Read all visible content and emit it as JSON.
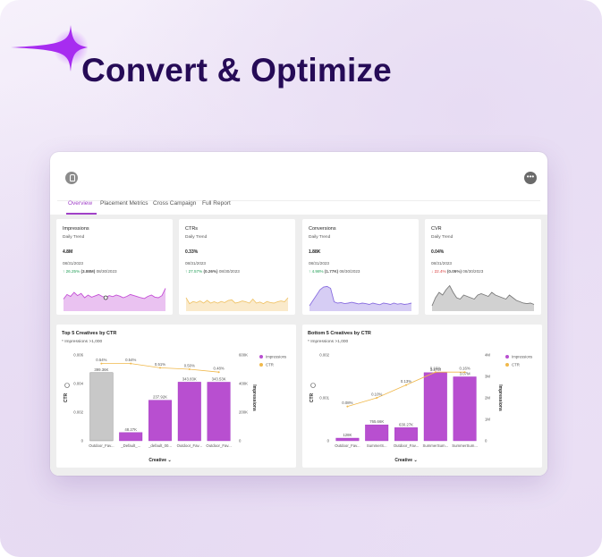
{
  "hero": {
    "title": "Convert & Optimize"
  },
  "tabs": [
    "Overview",
    "Placement Metrics",
    "Cross Campaign",
    "Full Report"
  ],
  "kpis": [
    {
      "title": "Impressions",
      "subtitle": "Daily Trend",
      "value": "4.8M",
      "date": "08/31/2023",
      "change_pct": "26.25%",
      "change_abs": "(3.88M)",
      "compare_date": "08/30/2023",
      "direction": "up",
      "color": "#c44fd6"
    },
    {
      "title": "CTRs",
      "subtitle": "Daily Trend",
      "value": "0.33%",
      "date": "08/31/2023",
      "change_pct": "27.57%",
      "change_abs": "(0.26%)",
      "compare_date": "08/30/2023",
      "direction": "up",
      "color": "#f0c46a"
    },
    {
      "title": "Conversions",
      "subtitle": "Daily Trend",
      "value": "1.88K",
      "date": "08/31/2023",
      "change_pct": "4.98%",
      "change_abs": "(1.77K)",
      "compare_date": "08/30/2023",
      "direction": "up",
      "color": "#8a6fe0"
    },
    {
      "title": "CVR",
      "subtitle": "Daily Trend",
      "value": "0.04%",
      "date": "08/31/2023",
      "change_pct": "22.4%",
      "change_abs": "(0.05%)",
      "compare_date": "08/30/2023",
      "direction": "down",
      "color": "#7a7a7a"
    }
  ],
  "chart_data": [
    {
      "type": "bar",
      "title": "Top 5 Creatives by CTR",
      "subtitle": "* Impressions >1,000",
      "xlabel": "Creative",
      "ylabel": "CTR",
      "y2label": "Impressions",
      "categories": [
        "Outdoor_Fav...",
        "_Default_...",
        "_default_00...",
        "Outdoor_Fav...",
        "Outdoor_Fav..."
      ],
      "series": [
        {
          "name": "Impressions",
          "type": "bar",
          "values": [
            399360,
            48270,
            237920,
            343830,
            343530
          ],
          "labels": [
            "399.36K",
            "48.27K",
            "237.92K",
            "343.83K",
            "343.53K"
          ]
        },
        {
          "name": "CTR",
          "type": "line",
          "values": [
            0.0054,
            0.0054,
            0.0051,
            0.005,
            0.0048
          ],
          "labels": [
            "0.54%",
            "0.54%",
            "0.51%",
            "0.50%",
            "0.48%"
          ]
        }
      ],
      "y_ticks": [
        "0.006",
        "0.004",
        "0.002",
        "0"
      ],
      "y2_ticks": [
        "600K",
        "400K",
        "200K",
        "0"
      ],
      "legend": [
        "Impressions",
        "CTR"
      ]
    },
    {
      "type": "bar",
      "title": "Bottom 5 Creatives by CTR",
      "subtitle": "* Impressions >1,000",
      "xlabel": "Creative",
      "ylabel": "CTR",
      "y2label": "Impressions",
      "categories": [
        "Outdoor_Fav...",
        "SummerS...",
        "Outdoor_Fav...",
        "SummerSum...",
        "SummerSum..."
      ],
      "series": [
        {
          "name": "Impressions",
          "type": "bar",
          "values": [
            128000,
            765660,
            630270,
            3270000,
            3070000
          ],
          "labels": [
            "128K",
            "765.66K",
            "630.27K",
            "3.27M",
            "3.07M"
          ]
        },
        {
          "name": "CTR",
          "type": "line",
          "values": [
            0.0008,
            0.001,
            0.0013,
            0.0016,
            0.0016
          ],
          "labels": [
            "0.08%",
            "0.10%",
            "0.13%",
            "0.16%",
            "0.16%"
          ]
        }
      ],
      "y_ticks": [
        "0.002",
        "0.001",
        "0"
      ],
      "y2_ticks": [
        "4M",
        "3M",
        "2M",
        "1M",
        "0"
      ],
      "legend": [
        "Impressions",
        "CTR"
      ]
    }
  ],
  "sparklines": [
    [
      0.45,
      0.62,
      0.55,
      0.7,
      0.58,
      0.66,
      0.5,
      0.6,
      0.52,
      0.57,
      0.62,
      0.55,
      0.5,
      0.58,
      0.54,
      0.6,
      0.56,
      0.5,
      0.55,
      0.62,
      0.58,
      0.54,
      0.5,
      0.47,
      0.55,
      0.6,
      0.52,
      0.5,
      0.58,
      0.85
    ],
    [
      0.5,
      0.28,
      0.36,
      0.32,
      0.38,
      0.3,
      0.4,
      0.3,
      0.35,
      0.3,
      0.36,
      0.32,
      0.4,
      0.42,
      0.3,
      0.33,
      0.38,
      0.35,
      0.3,
      0.45,
      0.3,
      0.34,
      0.28,
      0.36,
      0.32,
      0.3,
      0.35,
      0.38,
      0.35,
      0.5
    ],
    [
      0.2,
      0.4,
      0.6,
      0.8,
      0.9,
      0.92,
      0.85,
      0.35,
      0.3,
      0.32,
      0.28,
      0.3,
      0.33,
      0.3,
      0.27,
      0.3,
      0.28,
      0.25,
      0.3,
      0.27,
      0.24,
      0.3,
      0.28,
      0.25,
      0.3,
      0.26,
      0.28,
      0.25,
      0.27,
      0.3
    ],
    [
      0.2,
      0.5,
      0.7,
      0.6,
      0.8,
      0.95,
      0.7,
      0.5,
      0.45,
      0.6,
      0.55,
      0.5,
      0.45,
      0.6,
      0.65,
      0.6,
      0.55,
      0.7,
      0.6,
      0.55,
      0.5,
      0.45,
      0.6,
      0.5,
      0.4,
      0.35,
      0.3,
      0.28,
      0.3,
      0.25
    ]
  ]
}
